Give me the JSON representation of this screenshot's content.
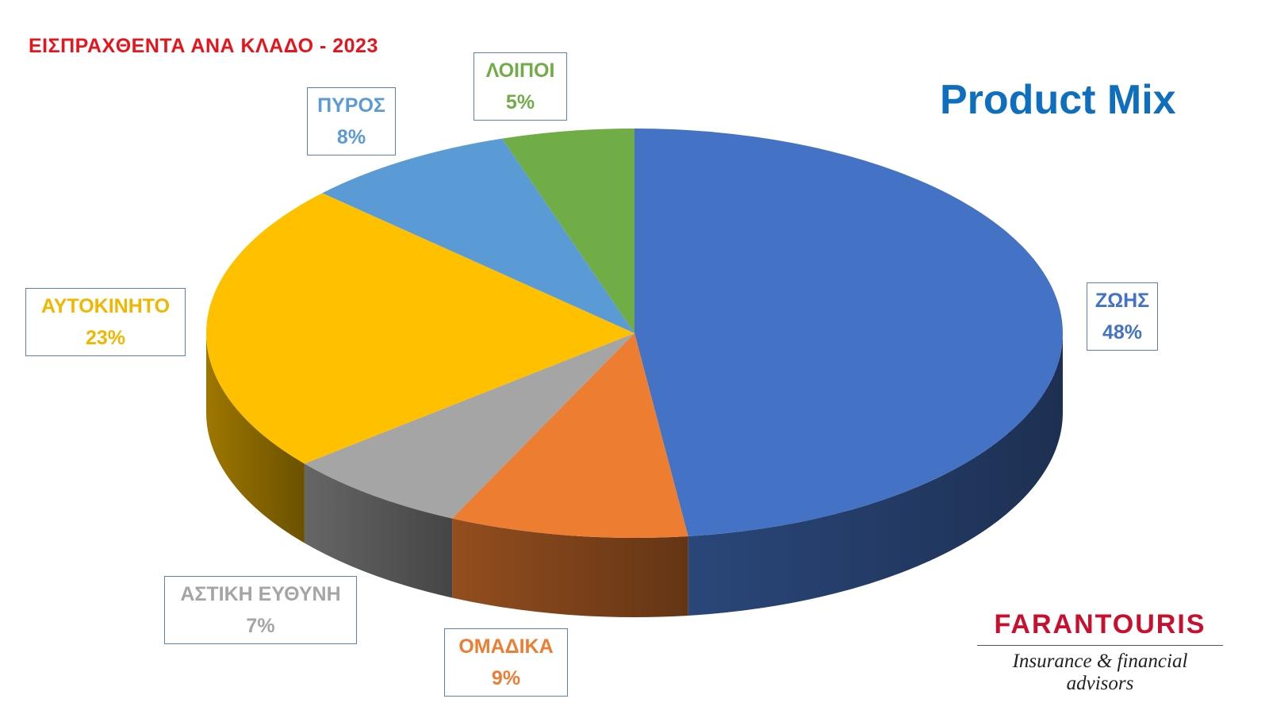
{
  "header": {
    "chart_title": "ΕΙΣΠΡΑΧΘΕΝΤΑ  ΑΝΑ ΚΛΑΔΟ - 2023",
    "subtitle": "Product Mix"
  },
  "brand": {
    "name": "FARANTOURIS",
    "tagline": "Insurance & financial advisors"
  },
  "chart_data": {
    "type": "pie",
    "title": "ΕΙΣΠΡΑΧΘΕΝΤΑ  ΑΝΑ ΚΛΑΔΟ - 2023",
    "subtitle": "Product Mix",
    "style": "3d",
    "legend": "none",
    "slices": [
      {
        "name": "ΖΩΗΣ",
        "value": 48,
        "label": "48%",
        "color": "#4472c4",
        "label_color": "#4472c4"
      },
      {
        "name": "ΟΜΑΔΙΚΑ",
        "value": 9,
        "label": "9%",
        "color": "#ed7d31",
        "label_color": "#ed7d31"
      },
      {
        "name": "ΑΣΤΙΚΗ ΕΥΘΥΝΗ",
        "value": 7,
        "label": "7%",
        "color": "#a5a5a5",
        "label_color": "#a5a5a5"
      },
      {
        "name": "ΑΥΤΟΚΙΝΗΤΟ",
        "value": 23,
        "label": "23%",
        "color": "#ffc000",
        "label_color": "#f2b600"
      },
      {
        "name": "ΠΥΡΟΣ",
        "value": 8,
        "label": "8%",
        "color": "#5b9bd5",
        "label_color": "#5b9bd5"
      },
      {
        "name": "ΛΟΙΠΟΙ",
        "value": 5,
        "label": "5%",
        "color": "#70ad47",
        "label_color": "#70ad47"
      }
    ]
  }
}
